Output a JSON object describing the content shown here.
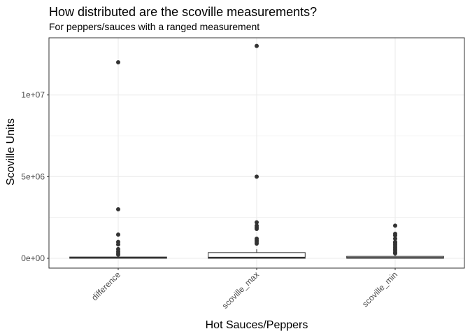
{
  "chart_data": {
    "type": "boxplot",
    "title": "How distributed are the scoville measurements?",
    "subtitle": "For peppers/sauces with a ranged measurement",
    "xlabel": "Hot Sauces/Peppers",
    "ylabel": "Scoville Units",
    "ylim": [
      -600000,
      13500000
    ],
    "yticks": [
      {
        "value": 0,
        "label": "0e+00"
      },
      {
        "value": 5000000,
        "label": "5e+06"
      },
      {
        "value": 10000000,
        "label": "1e+07"
      }
    ],
    "grid": true,
    "categories": [
      "difference",
      "scoville_max",
      "scoville_min"
    ],
    "boxes": [
      {
        "category": "difference",
        "min": 0,
        "q1": 0,
        "median": 20000,
        "q3": 80000,
        "max": 180000,
        "outliers": [
          12000000,
          3000000,
          1450000,
          1000000,
          850000,
          560000,
          430000,
          320000,
          220000
        ]
      },
      {
        "category": "scoville_max",
        "min": 0,
        "q1": 0,
        "median": 50000,
        "q3": 350000,
        "max": 550000,
        "outliers": [
          13000000,
          5000000,
          2200000,
          2000000,
          1900000,
          1800000,
          1200000,
          1100000,
          1000000,
          900000
        ]
      },
      {
        "category": "scoville_min",
        "min": 0,
        "q1": 0,
        "median": 30000,
        "q3": 120000,
        "max": 250000,
        "outliers": [
          2000000,
          1500000,
          1400000,
          1200000,
          1000000,
          950000,
          850000,
          750000,
          650000,
          550000,
          450000,
          350000,
          300000
        ]
      }
    ],
    "colors": {
      "panel_border": "#333333",
      "grid": "#ebebeb",
      "box_line": "#333333",
      "point": "#333333",
      "box_fill": "#ffffff"
    }
  }
}
